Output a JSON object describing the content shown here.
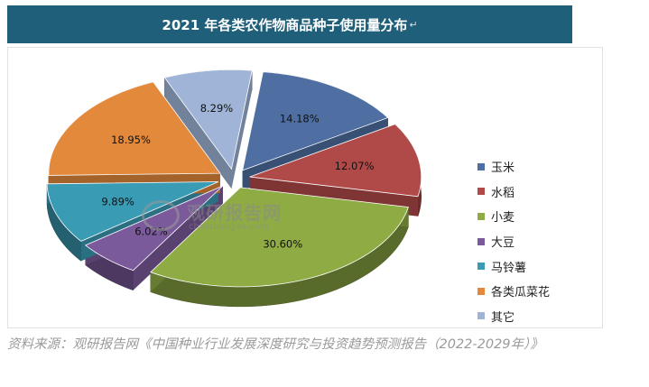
{
  "chart_data": {
    "type": "pie",
    "style": "3d-exploded",
    "title": "2021 年各类农作物商品种子使用量分布",
    "title_mark": "↵",
    "slices": [
      {
        "label": "玉米",
        "value": 14.18,
        "display": "14.18%",
        "color": "#4f6fa3"
      },
      {
        "label": "水稻",
        "value": 12.07,
        "display": "12.07%",
        "color": "#b04a48"
      },
      {
        "label": "小麦",
        "value": 30.6,
        "display": "30.60%",
        "color": "#8fac44"
      },
      {
        "label": "大豆",
        "value": 6.02,
        "display": "6.02%",
        "color": "#7b5a9c"
      },
      {
        "label": "马铃薯",
        "value": 9.89,
        "display": "9.89%",
        "color": "#3a9bb5"
      },
      {
        "label": "各类瓜菜花",
        "value": 18.95,
        "display": "18.95%",
        "color": "#e2893c"
      },
      {
        "label": "其它",
        "value": 8.29,
        "display": "8.29%",
        "color": "#9fb4d6"
      }
    ],
    "legend_position": "right"
  },
  "watermark": {
    "name": "观研报告网",
    "url": "chinabaogao.com"
  },
  "source": "资料来源：观研报告网《中国种业行业发展深度研究与投资趋势预测报告（2022-2029年）》"
}
